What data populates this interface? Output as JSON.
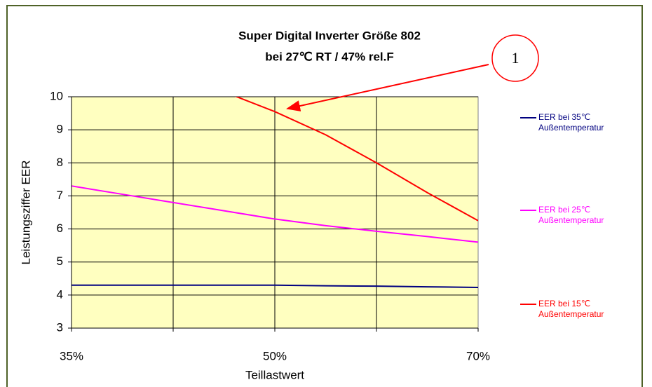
{
  "chart_data": {
    "type": "line",
    "title": "Super Digital Inverter Größe 802",
    "subtitle": "bei 27℃ RT / 47% rel.F",
    "x_label": "Teillastwert",
    "y_label": "Leistungsziffer EER",
    "categories": [
      "35%",
      null,
      null,
      null,
      "50%",
      null,
      null,
      null,
      "70%"
    ],
    "series": [
      {
        "name": "EER bei 35℃ Außentemperatur",
        "color": "#000080",
        "values": [
          4.3,
          4.3,
          4.3,
          4.3,
          4.3,
          4.28,
          4.27,
          4.25,
          4.23
        ]
      },
      {
        "name": "EER bei 25℃ Außentemperatur",
        "color": "#ff00ff",
        "values": [
          7.3,
          7.05,
          6.8,
          6.55,
          6.3,
          6.1,
          5.93,
          5.77,
          5.6
        ]
      },
      {
        "name": "EER bei 15℃ Außentemperatur",
        "color": "#ff0000",
        "values": [
          null,
          null,
          null,
          10.15,
          9.55,
          8.85,
          8.0,
          7.1,
          6.25
        ]
      }
    ],
    "ylim": [
      3,
      10
    ],
    "yticks": [
      3,
      4,
      5,
      6,
      7,
      8,
      9,
      10
    ],
    "grid": true,
    "legend": "right",
    "annotation": "1"
  }
}
